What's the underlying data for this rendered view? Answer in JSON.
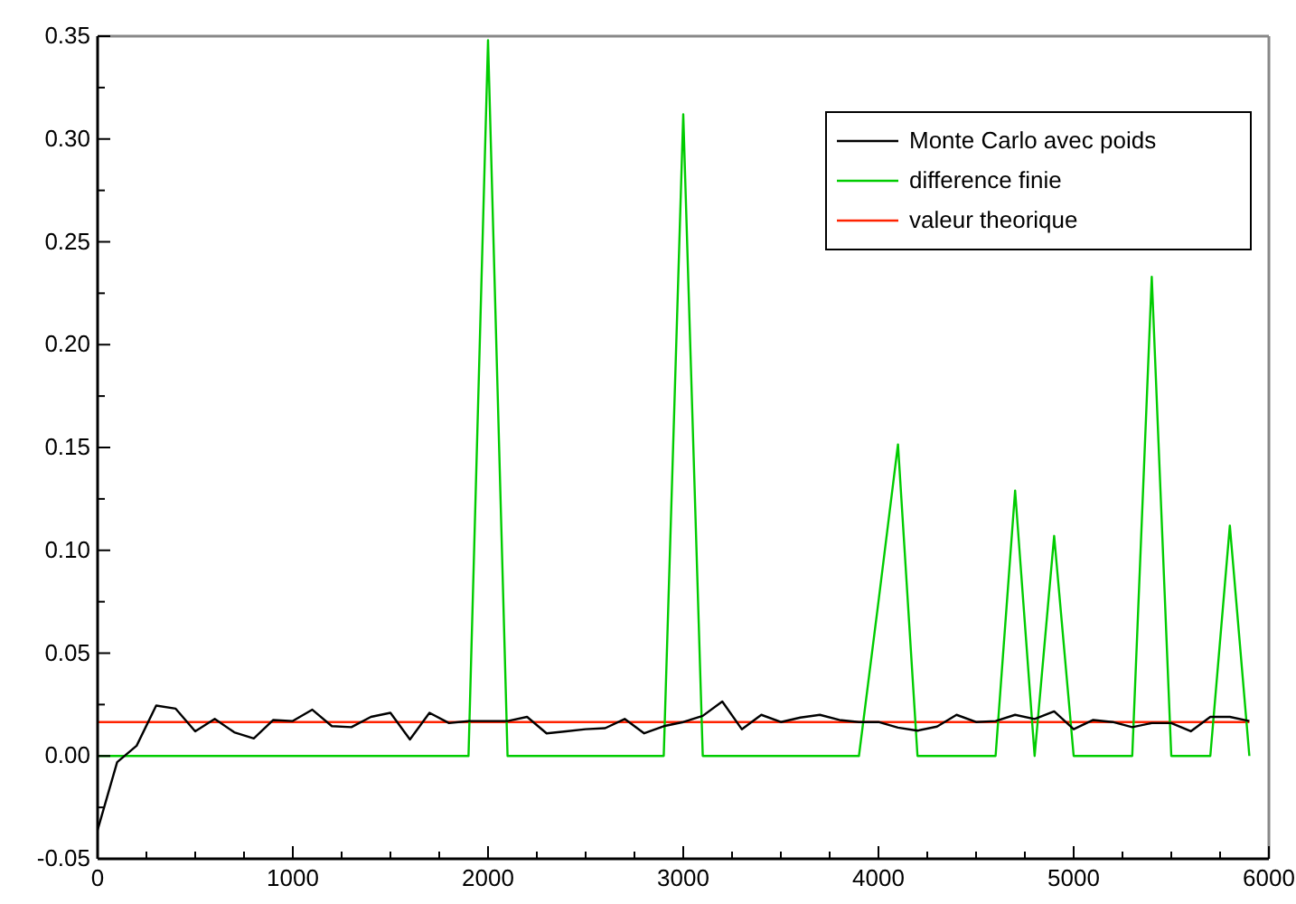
{
  "chart_data": {
    "type": "line",
    "xlim": [
      0,
      6000
    ],
    "ylim": [
      -0.05,
      0.35
    ],
    "xticks": [
      0,
      {
        "value": 250,
        "label": null
      },
      {
        "value": 500,
        "label": null
      },
      {
        "value": 750,
        "label": null
      },
      1000,
      {
        "value": 1250,
        "label": null
      },
      {
        "value": 1500,
        "label": null
      },
      {
        "value": 1750,
        "label": null
      },
      2000,
      {
        "value": 2250,
        "label": null
      },
      {
        "value": 2500,
        "label": null
      },
      {
        "value": 2750,
        "label": null
      },
      3000,
      {
        "value": 3250,
        "label": null
      },
      {
        "value": 3500,
        "label": null
      },
      {
        "value": 3750,
        "label": null
      },
      4000,
      {
        "value": 4250,
        "label": null
      },
      {
        "value": 4500,
        "label": null
      },
      {
        "value": 4750,
        "label": null
      },
      5000,
      {
        "value": 5250,
        "label": null
      },
      {
        "value": 5500,
        "label": null
      },
      {
        "value": 5750,
        "label": null
      },
      6000
    ],
    "yticks": [
      {
        "value": -0.05,
        "label": "-0.05"
      },
      {
        "value": -0.025,
        "label": null
      },
      {
        "value": 0,
        "label": "0.00"
      },
      {
        "value": 0.025,
        "label": null
      },
      {
        "value": 0.05,
        "label": "0.05"
      },
      {
        "value": 0.075,
        "label": null
      },
      {
        "value": 0.1,
        "label": "0.10"
      },
      {
        "value": 0.125,
        "label": null
      },
      {
        "value": 0.15,
        "label": "0.15"
      },
      {
        "value": 0.175,
        "label": null
      },
      {
        "value": 0.2,
        "label": "0.20"
      },
      {
        "value": 0.225,
        "label": null
      },
      {
        "value": 0.25,
        "label": "0.25"
      },
      {
        "value": 0.275,
        "label": null
      },
      {
        "value": 0.3,
        "label": "0.30"
      },
      {
        "value": 0.325,
        "label": null
      },
      {
        "value": 0.35,
        "label": "0.35"
      }
    ],
    "x": [
      0,
      100,
      200,
      300,
      400,
      500,
      600,
      700,
      800,
      900,
      1000,
      1100,
      1200,
      1300,
      1400,
      1500,
      1600,
      1700,
      1800,
      1900,
      2000,
      2100,
      2200,
      2300,
      2400,
      2500,
      2600,
      2700,
      2800,
      2900,
      3000,
      3100,
      3200,
      3300,
      3400,
      3500,
      3600,
      3700,
      3800,
      3900,
      4000,
      4100,
      4200,
      4300,
      4400,
      4500,
      4600,
      4700,
      4800,
      4900,
      5000,
      5100,
      5200,
      5300,
      5400,
      5500,
      5600,
      5700,
      5800,
      5900
    ],
    "series": [
      {
        "name": "Monte Carlo avec poids",
        "color": "#000000",
        "values": [
          -0.036,
          -0.003,
          0.005,
          0.0245,
          0.023,
          0.012,
          0.018,
          0.0115,
          0.0085,
          0.0175,
          0.017,
          0.0225,
          0.0145,
          0.014,
          0.019,
          0.021,
          0.008,
          0.021,
          0.016,
          0.017,
          0.017,
          0.017,
          0.019,
          0.011,
          0.012,
          0.013,
          0.0135,
          0.018,
          0.011,
          0.0145,
          0.0165,
          0.0195,
          0.0265,
          0.013,
          0.02,
          0.0165,
          0.0187,
          0.02,
          0.0175,
          0.0165,
          0.0165,
          0.0138,
          0.0123,
          0.0143,
          0.02,
          0.0165,
          0.017,
          0.02,
          0.018,
          0.0217,
          0.013,
          0.0175,
          0.0165,
          0.014,
          0.016,
          0.016,
          0.012,
          0.019,
          0.019,
          0.017
        ]
      },
      {
        "name": "difference finie",
        "color": "#00cc00",
        "values": [
          0,
          0,
          0,
          0,
          0,
          0,
          0,
          0,
          0,
          0,
          0,
          0,
          0,
          0,
          0,
          0,
          0,
          0,
          0,
          0,
          0.348,
          0,
          0,
          0,
          0,
          0,
          0,
          0,
          0,
          0,
          0.312,
          0,
          0,
          0,
          0,
          0,
          0,
          0,
          0,
          0,
          0.075,
          0.1515,
          0,
          0,
          0,
          0,
          0,
          0.129,
          0,
          0.107,
          0,
          0,
          0,
          0,
          0.233,
          0,
          0,
          0,
          0.112,
          0
        ]
      },
      {
        "name": "valeur theorique",
        "color": "#ff2200",
        "x": [
          0,
          5900
        ],
        "values": [
          0.0165,
          0.0165
        ]
      }
    ],
    "legend": "top right",
    "grid": false,
    "marker": "none",
    "line_style": "solid"
  }
}
